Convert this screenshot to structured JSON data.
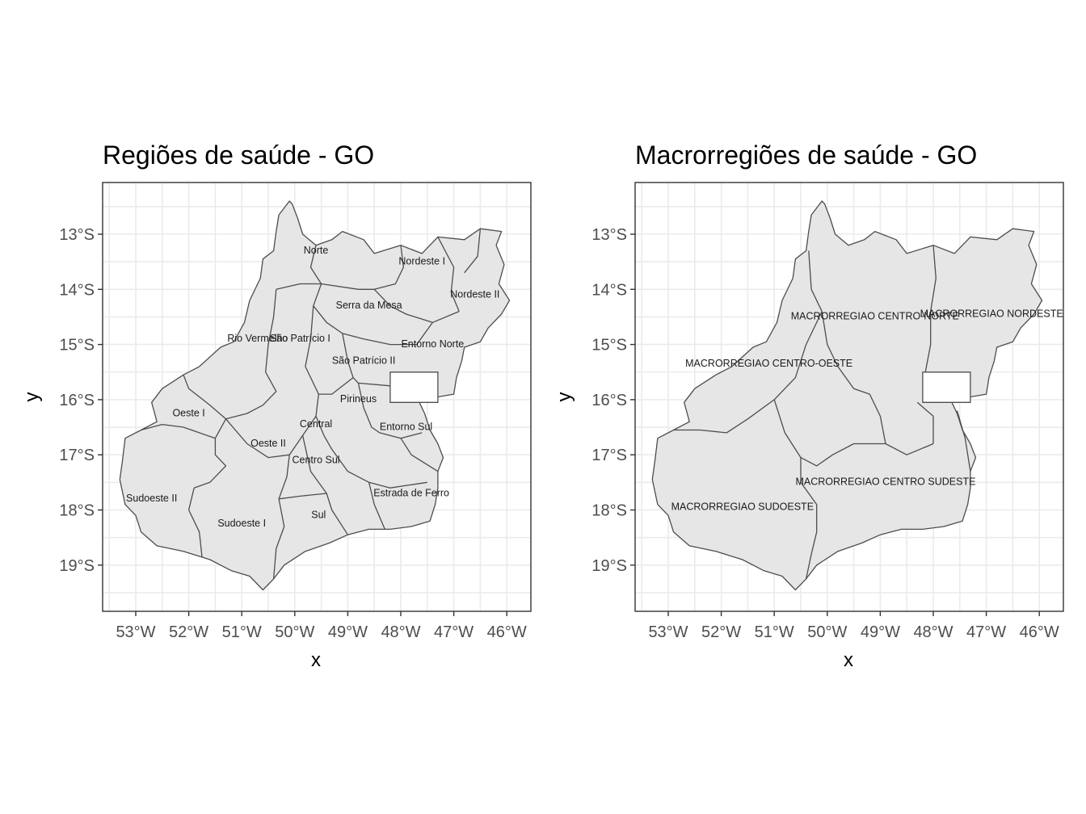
{
  "map_data": {
    "axes": {
      "x_title": "x",
      "y_title": "y",
      "x_ticks": [
        "53°W",
        "52°W",
        "51°W",
        "50°W",
        "49°W",
        "48°W",
        "47°W",
        "46°W"
      ],
      "y_ticks": [
        "13°S",
        "14°S",
        "15°S",
        "16°S",
        "17°S",
        "18°S",
        "19°S"
      ],
      "lon_range": [
        -53.6,
        -45.6
      ],
      "lat_range": [
        -19.8,
        -12.0
      ],
      "grid": true
    },
    "fill_color": "#e6e6e6",
    "border_color": "#4d4d4d",
    "panels": [
      {
        "title": "Regiões de saúde - GO",
        "labels": [
          {
            "text": "Norte",
            "lon": -49.6,
            "lat": -13.3
          },
          {
            "text": "Nordeste I",
            "lon": -47.6,
            "lat": -13.5
          },
          {
            "text": "Nordeste II",
            "lon": -46.6,
            "lat": -14.1
          },
          {
            "text": "Serra da Mesa",
            "lon": -48.6,
            "lat": -14.3
          },
          {
            "text": "Rio Vermelho",
            "lon": -50.7,
            "lat": -14.9
          },
          {
            "text": "São Patrício I",
            "lon": -49.9,
            "lat": -14.9
          },
          {
            "text": "Entorno Norte",
            "lon": -47.4,
            "lat": -15.0
          },
          {
            "text": "São Patrício II",
            "lon": -48.7,
            "lat": -15.3
          },
          {
            "text": "Pirineus",
            "lon": -48.8,
            "lat": -16.0
          },
          {
            "text": "Oeste I",
            "lon": -52.0,
            "lat": -16.25
          },
          {
            "text": "Central",
            "lon": -49.6,
            "lat": -16.45
          },
          {
            "text": "Entorno Sul",
            "lon": -47.9,
            "lat": -16.5
          },
          {
            "text": "Oeste II",
            "lon": -50.5,
            "lat": -16.8
          },
          {
            "text": "Centro Sul",
            "lon": -49.6,
            "lat": -17.1
          },
          {
            "text": "Sudoeste II",
            "lon": -52.7,
            "lat": -17.8
          },
          {
            "text": "Estrada de Ferro",
            "lon": -47.8,
            "lat": -17.7
          },
          {
            "text": "Sul",
            "lon": -49.55,
            "lat": -18.1
          },
          {
            "text": "Sudoeste I",
            "lon": -51.0,
            "lat": -18.25
          }
        ]
      },
      {
        "title": "Macrorregiões de saúde - GO",
        "labels": [
          {
            "text": "MACRORREGIAO CENTRO-NORTE",
            "lon": -49.1,
            "lat": -14.5
          },
          {
            "text": "MACRORREGIAO NORDESTE",
            "lon": -46.9,
            "lat": -14.45
          },
          {
            "text": "MACRORREGIAO CENTRO-OESTE",
            "lon": -51.1,
            "lat": -15.35
          },
          {
            "text": "MACRORREGIAO CENTRO SUDESTE",
            "lon": -48.9,
            "lat": -17.5
          },
          {
            "text": "MACRORREGIAO SUDOESTE",
            "lon": -51.6,
            "lat": -17.95
          }
        ]
      }
    ]
  }
}
